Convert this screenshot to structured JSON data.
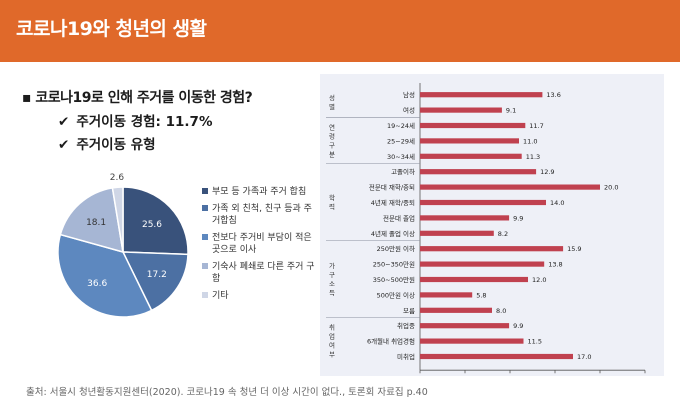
{
  "header": {
    "title": "코로나19와 청년의 생활"
  },
  "question": {
    "bullet": "▪",
    "text": "코로나19로 인해 주거를 이동한 경험?"
  },
  "checks": [
    {
      "mark": "✔",
      "text": "주거이동 경험: 11.7%"
    },
    {
      "mark": "✔",
      "text": "주거이동 유형"
    }
  ],
  "source": "출처: 서울시 청년활동지원센터(2020). 코로나19 속 청년 더 이상 시간이 없다., 토론회 자료집 p.40",
  "colors": {
    "header": "#e0692a",
    "bar": "#c0414f",
    "pie": [
      "#39527b",
      "#4c70a3",
      "#5d88bf",
      "#a6b6d4",
      "#cfd6e6"
    ]
  },
  "chart_data": [
    {
      "type": "pie",
      "slices": [
        {
          "label": "부모 등 가족과 주거 합침",
          "value": 25.6
        },
        {
          "label": "가족 외 친척, 친구 등과 주거합침",
          "value": 17.2
        },
        {
          "label": "전보다 주거비 부담이 적은 곳으로 이사",
          "value": 36.6
        },
        {
          "label": "기숙사 폐쇄로 다른 주거 구함",
          "value": 18.1
        },
        {
          "label": "기타",
          "value": 2.6
        }
      ]
    },
    {
      "type": "bar",
      "orientation": "horizontal",
      "groups": [
        {
          "label": "성별",
          "categories": [
            "남성",
            "여성"
          ],
          "values": [
            13.6,
            9.1
          ]
        },
        {
          "label": "연령구분",
          "categories": [
            "19~24세",
            "25~29세",
            "30~34세"
          ],
          "values": [
            11.7,
            11.0,
            11.3
          ]
        },
        {
          "label": "학력",
          "categories": [
            "고졸이하",
            "전문대 재학/중퇴",
            "4년제 재학/중퇴",
            "전문대 졸업",
            "4년제 졸업 이상"
          ],
          "values": [
            12.9,
            20.0,
            14.0,
            9.9,
            8.2
          ]
        },
        {
          "label": "가구소득",
          "categories": [
            "250만원 이하",
            "250~350만원",
            "350~500만원",
            "500만원 이상",
            "모름"
          ],
          "values": [
            15.9,
            13.8,
            12.0,
            5.8,
            8.0
          ]
        },
        {
          "label": "취업여부",
          "categories": [
            "취업중",
            "6개월내 취업경험",
            "미취업"
          ],
          "values": [
            9.9,
            11.5,
            17.0
          ]
        }
      ],
      "xlim": [
        0,
        25
      ],
      "xticks": [
        "0.0",
        "5.0",
        "10.0",
        "15.0",
        "20.0",
        "25.0"
      ]
    }
  ]
}
